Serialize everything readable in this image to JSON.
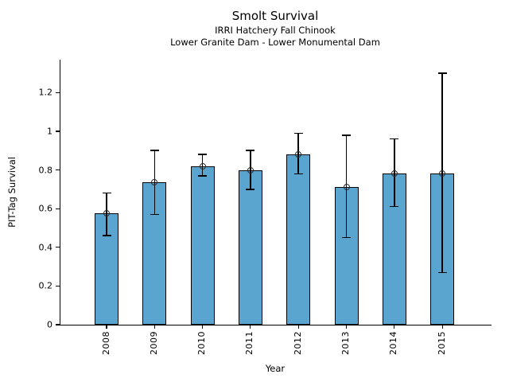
{
  "figure": {
    "title": "Smolt Survival",
    "subtitle1": "IRRI Hatchery Fall Chinook",
    "subtitle2": "Lower Granite Dam - Lower Monumental Dam"
  },
  "chart_data": {
    "type": "bar",
    "title": "Smolt Survival",
    "subtitle": [
      "IRRI Hatchery Fall Chinook",
      "Lower Granite Dam - Lower Monumental Dam"
    ],
    "categories": [
      "2008",
      "2009",
      "2010",
      "2011",
      "2012",
      "2013",
      "2014",
      "2015"
    ],
    "values": [
      0.575,
      0.735,
      0.82,
      0.8,
      0.88,
      0.71,
      0.78,
      0.78
    ],
    "error_low": [
      0.46,
      0.57,
      0.77,
      0.7,
      0.78,
      0.45,
      0.61,
      0.27
    ],
    "error_high": [
      0.68,
      0.9,
      0.88,
      0.9,
      0.99,
      0.98,
      0.96,
      1.3
    ],
    "xlabel": "Year",
    "ylabel": "PIT-Tag Survival",
    "ylim": [
      0,
      1.37
    ],
    "yticks": [
      0,
      0.2,
      0.4,
      0.6,
      0.8,
      1,
      1.2
    ],
    "ytick_labels": [
      "0",
      "0.2",
      "0.4",
      "0.6",
      "0.8",
      "1",
      "1.2"
    ],
    "xtick_rotation_deg": 90,
    "bar_color": "#5AA4D0",
    "bar_edge_color": "#000000",
    "error_color": "#000000",
    "marker": "open-circle",
    "marker_edge_color": "#2b2b2b",
    "grid": false,
    "legend": null
  }
}
